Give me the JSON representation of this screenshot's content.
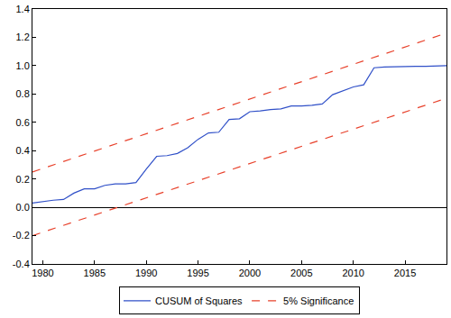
{
  "chart_data": {
    "type": "line",
    "x": [
      1979,
      1980,
      1981,
      1982,
      1983,
      1984,
      1985,
      1986,
      1987,
      1988,
      1989,
      1990,
      1991,
      1992,
      1993,
      1994,
      1995,
      1996,
      1997,
      1998,
      1999,
      2000,
      2001,
      2002,
      2003,
      2004,
      2005,
      2006,
      2007,
      2008,
      2009,
      2010,
      2011,
      2012,
      2013,
      2014,
      2015,
      2016,
      2017,
      2018,
      2019
    ],
    "series": [
      {
        "name": "CUSUM of Squares",
        "color": "#3050c8",
        "line_style": "solid",
        "values": [
          0.03,
          0.04,
          0.05,
          0.055,
          0.1,
          0.13,
          0.13,
          0.155,
          0.165,
          0.165,
          0.175,
          0.27,
          0.36,
          0.365,
          0.38,
          0.42,
          0.48,
          0.525,
          0.53,
          0.62,
          0.625,
          0.675,
          0.68,
          0.69,
          0.695,
          0.715,
          0.715,
          0.72,
          0.73,
          0.795,
          0.825,
          0.85,
          0.865,
          0.985,
          0.99,
          0.993,
          0.995,
          0.995,
          0.995,
          0.997,
          1.0
        ]
      },
      {
        "name": "5% Significance",
        "color": "#e8412b",
        "line_style": "dash",
        "x": [
          1979,
          2019
        ],
        "values": [
          0.25,
          1.23
        ]
      },
      {
        "name": "5% Significance",
        "color": "#e8412b",
        "line_style": "dash",
        "x": [
          1979,
          2019
        ],
        "values": [
          -0.2,
          0.77
        ]
      }
    ],
    "xlim": [
      1979,
      2019
    ],
    "xticks": [
      1980,
      1985,
      1990,
      1995,
      2000,
      2005,
      2010,
      2015
    ],
    "ylim": [
      -0.4,
      1.4
    ],
    "yticks": [
      -0.4,
      -0.2,
      {
        "value": 0,
        "label": "0.0"
      },
      0.2,
      0.4,
      0.6,
      0.8,
      {
        "value": 1,
        "label": "1.0"
      },
      1.2,
      1.4
    ],
    "grid": false,
    "legend": "bottom"
  }
}
